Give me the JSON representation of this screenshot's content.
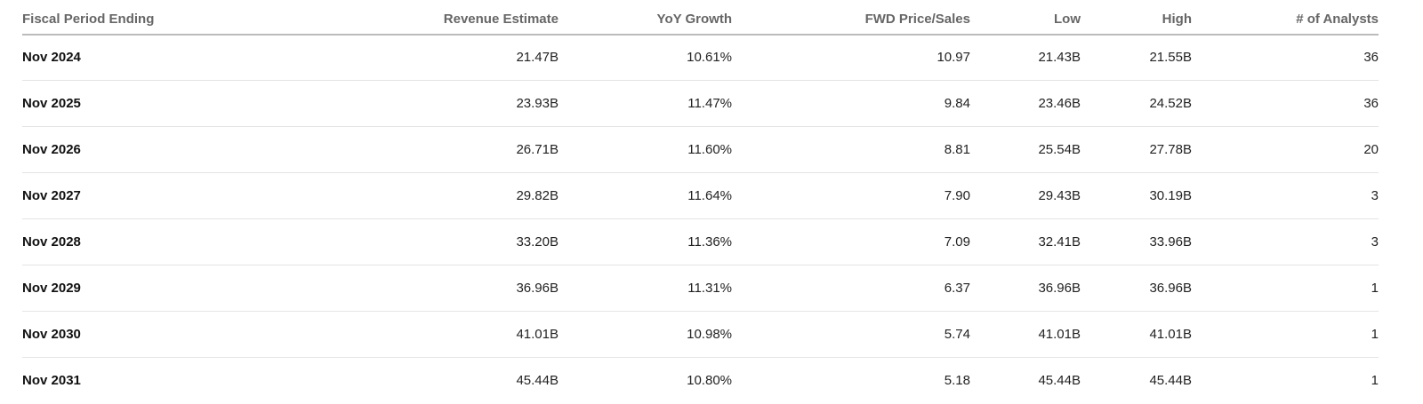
{
  "table": {
    "columns": [
      "Fiscal Period Ending",
      "Revenue Estimate",
      "YoY Growth",
      "FWD Price/Sales",
      "Low",
      "High",
      "# of Analysts"
    ],
    "rows": [
      [
        "Nov 2024",
        "21.47B",
        "10.61%",
        "10.97",
        "21.43B",
        "21.55B",
        "36"
      ],
      [
        "Nov 2025",
        "23.93B",
        "11.47%",
        "9.84",
        "23.46B",
        "24.52B",
        "36"
      ],
      [
        "Nov 2026",
        "26.71B",
        "11.60%",
        "8.81",
        "25.54B",
        "27.78B",
        "20"
      ],
      [
        "Nov 2027",
        "29.82B",
        "11.64%",
        "7.90",
        "29.43B",
        "30.19B",
        "3"
      ],
      [
        "Nov 2028",
        "33.20B",
        "11.36%",
        "7.09",
        "32.41B",
        "33.96B",
        "3"
      ],
      [
        "Nov 2029",
        "36.96B",
        "11.31%",
        "6.37",
        "36.96B",
        "36.96B",
        "1"
      ],
      [
        "Nov 2030",
        "41.01B",
        "10.98%",
        "5.74",
        "41.01B",
        "41.01B",
        "1"
      ],
      [
        "Nov 2031",
        "45.44B",
        "10.80%",
        "5.18",
        "45.44B",
        "45.44B",
        "1"
      ]
    ]
  }
}
